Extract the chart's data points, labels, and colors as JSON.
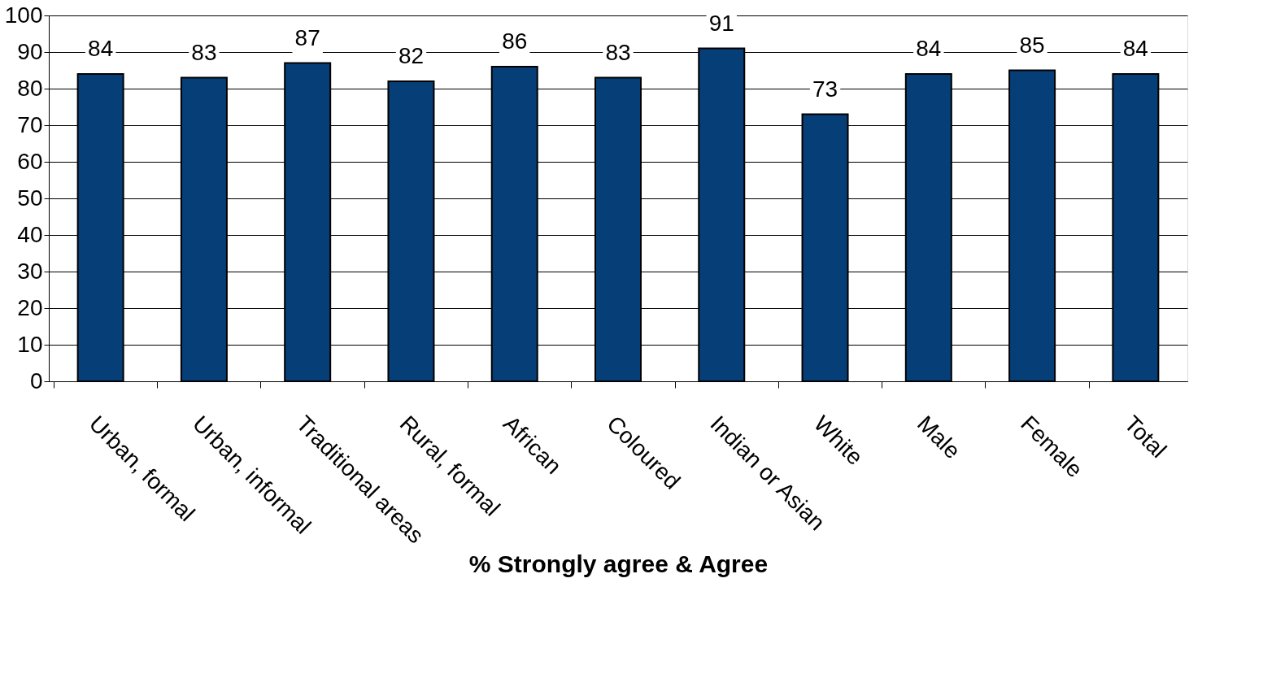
{
  "chart_data": {
    "type": "bar",
    "xlabel": "% Strongly agree & Agree",
    "categories": [
      "Urban, formal",
      "Urban, informal",
      "Traditional areas",
      "Rural, formal",
      "African",
      "Coloured",
      "Indian or Asian",
      "White",
      "Male",
      "Female",
      "Total"
    ],
    "values": [
      84,
      83,
      87,
      82,
      86,
      83,
      91,
      73,
      84,
      85,
      84
    ],
    "color": "#063f78",
    "ylim": [
      0,
      100
    ],
    "yticks": [
      0,
      10,
      20,
      30,
      40,
      50,
      60,
      70,
      80,
      90,
      100
    ],
    "grid": "y",
    "data_labels": true
  }
}
